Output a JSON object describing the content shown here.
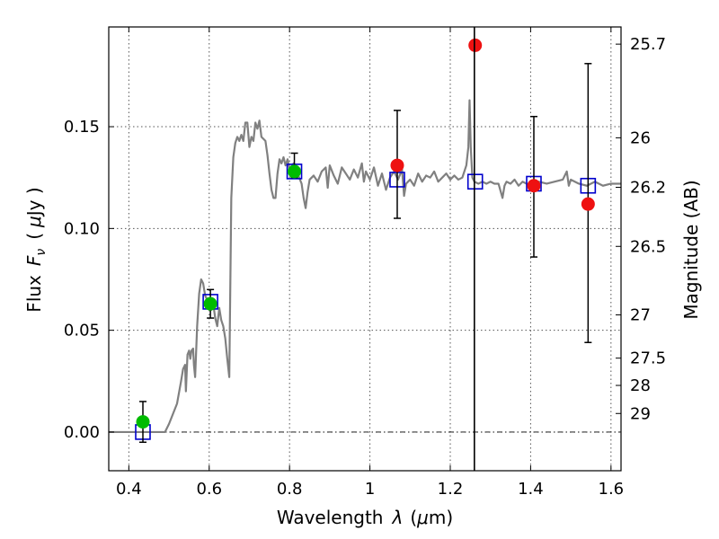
{
  "chart_data": {
    "type": "scatter",
    "xlabel_text": "Wavelength",
    "xlabel_sym": "λ",
    "xlabel_unit_open": "(",
    "xlabel_unit_mu": "μ",
    "xlabel_unit_rest": "m)",
    "ylabel_text": "Flux",
    "ylabel_sym": "F",
    "ylabel_sub": "ν",
    "ylabel_unit_open": "(",
    "ylabel_unit_mu": "μ",
    "ylabel_unit_rest": "Jy )",
    "y2label": "Magnitude (AB)",
    "xlim": [
      0.35,
      1.625
    ],
    "ylim": [
      -0.019,
      0.199
    ],
    "x_ticks": [
      {
        "value": 0.4,
        "label": "0.4"
      },
      {
        "value": 0.6,
        "label": "0.6"
      },
      {
        "value": 0.8,
        "label": "0.8"
      },
      {
        "value": 1.0,
        "label": "1"
      },
      {
        "value": 1.2,
        "label": "1.2"
      },
      {
        "value": 1.4,
        "label": "1.4"
      },
      {
        "value": 1.6,
        "label": "1.6"
      }
    ],
    "y_ticks": [
      {
        "value": 0.0,
        "label": "0.00"
      },
      {
        "value": 0.05,
        "label": "0.05"
      },
      {
        "value": 0.1,
        "label": "0.10"
      },
      {
        "value": 0.15,
        "label": "0.15"
      }
    ],
    "y2_ticks": [
      {
        "mag": 25.7,
        "label": "25.7"
      },
      {
        "mag": 26.0,
        "label": "26"
      },
      {
        "mag": 26.2,
        "label": "26.2"
      },
      {
        "mag": 26.5,
        "label": "26.5"
      },
      {
        "mag": 27.0,
        "label": "27"
      },
      {
        "mag": 27.5,
        "label": "27.5"
      },
      {
        "mag": 28.0,
        "label": "28"
      },
      {
        "mag": 29.0,
        "label": "29"
      }
    ],
    "grid": true,
    "zero_line_y": 0.0,
    "vertical_line_x": 1.26,
    "series": [
      {
        "kind": "line",
        "color": "#808080",
        "points": [
          [
            0.35,
            0.0
          ],
          [
            0.49,
            0.0
          ],
          [
            0.5,
            0.004
          ],
          [
            0.52,
            0.014
          ],
          [
            0.53,
            0.025
          ],
          [
            0.535,
            0.031
          ],
          [
            0.54,
            0.033
          ],
          [
            0.542,
            0.02
          ],
          [
            0.546,
            0.038
          ],
          [
            0.55,
            0.04
          ],
          [
            0.553,
            0.036
          ],
          [
            0.556,
            0.04
          ],
          [
            0.56,
            0.041
          ],
          [
            0.562,
            0.033
          ],
          [
            0.565,
            0.027
          ],
          [
            0.57,
            0.052
          ],
          [
            0.575,
            0.068
          ],
          [
            0.58,
            0.075
          ],
          [
            0.585,
            0.073
          ],
          [
            0.59,
            0.067
          ],
          [
            0.595,
            0.065
          ],
          [
            0.6,
            0.062
          ],
          [
            0.605,
            0.06
          ],
          [
            0.61,
            0.063
          ],
          [
            0.615,
            0.056
          ],
          [
            0.62,
            0.052
          ],
          [
            0.625,
            0.061
          ],
          [
            0.63,
            0.055
          ],
          [
            0.635,
            0.052
          ],
          [
            0.64,
            0.046
          ],
          [
            0.645,
            0.036
          ],
          [
            0.65,
            0.027
          ],
          [
            0.655,
            0.115
          ],
          [
            0.66,
            0.135
          ],
          [
            0.665,
            0.142
          ],
          [
            0.67,
            0.145
          ],
          [
            0.675,
            0.143
          ],
          [
            0.68,
            0.146
          ],
          [
            0.685,
            0.143
          ],
          [
            0.69,
            0.152
          ],
          [
            0.695,
            0.152
          ],
          [
            0.7,
            0.14
          ],
          [
            0.705,
            0.145
          ],
          [
            0.71,
            0.143
          ],
          [
            0.715,
            0.152
          ],
          [
            0.72,
            0.149
          ],
          [
            0.725,
            0.153
          ],
          [
            0.73,
            0.145
          ],
          [
            0.735,
            0.144
          ],
          [
            0.74,
            0.143
          ],
          [
            0.745,
            0.136
          ],
          [
            0.75,
            0.127
          ],
          [
            0.755,
            0.119
          ],
          [
            0.76,
            0.115
          ],
          [
            0.765,
            0.115
          ],
          [
            0.77,
            0.127
          ],
          [
            0.775,
            0.134
          ],
          [
            0.78,
            0.132
          ],
          [
            0.785,
            0.135
          ],
          [
            0.79,
            0.131
          ],
          [
            0.795,
            0.134
          ],
          [
            0.8,
            0.129
          ],
          [
            0.81,
            0.132
          ],
          [
            0.82,
            0.127
          ],
          [
            0.83,
            0.122
          ],
          [
            0.835,
            0.115
          ],
          [
            0.84,
            0.11
          ],
          [
            0.845,
            0.118
          ],
          [
            0.85,
            0.124
          ],
          [
            0.86,
            0.126
          ],
          [
            0.87,
            0.123
          ],
          [
            0.88,
            0.128
          ],
          [
            0.89,
            0.13
          ],
          [
            0.895,
            0.12
          ],
          [
            0.9,
            0.131
          ],
          [
            0.91,
            0.126
          ],
          [
            0.92,
            0.122
          ],
          [
            0.93,
            0.13
          ],
          [
            0.94,
            0.127
          ],
          [
            0.95,
            0.124
          ],
          [
            0.96,
            0.129
          ],
          [
            0.97,
            0.125
          ],
          [
            0.98,
            0.132
          ],
          [
            0.985,
            0.123
          ],
          [
            0.99,
            0.128
          ],
          [
            1.0,
            0.124
          ],
          [
            1.01,
            0.13
          ],
          [
            1.02,
            0.121
          ],
          [
            1.03,
            0.127
          ],
          [
            1.04,
            0.119
          ],
          [
            1.05,
            0.125
          ],
          [
            1.06,
            0.128
          ],
          [
            1.07,
            0.124
          ],
          [
            1.08,
            0.129
          ],
          [
            1.085,
            0.116
          ],
          [
            1.09,
            0.122
          ],
          [
            1.1,
            0.124
          ],
          [
            1.11,
            0.121
          ],
          [
            1.12,
            0.127
          ],
          [
            1.13,
            0.123
          ],
          [
            1.14,
            0.126
          ],
          [
            1.15,
            0.125
          ],
          [
            1.16,
            0.128
          ],
          [
            1.17,
            0.123
          ],
          [
            1.18,
            0.125
          ],
          [
            1.19,
            0.127
          ],
          [
            1.2,
            0.124
          ],
          [
            1.21,
            0.126
          ],
          [
            1.22,
            0.124
          ],
          [
            1.23,
            0.125
          ],
          [
            1.24,
            0.131
          ],
          [
            1.245,
            0.14
          ],
          [
            1.248,
            0.163
          ],
          [
            1.251,
            0.14
          ],
          [
            1.255,
            0.125
          ],
          [
            1.26,
            0.123
          ],
          [
            1.27,
            0.122
          ],
          [
            1.28,
            0.123
          ],
          [
            1.29,
            0.122
          ],
          [
            1.3,
            0.123
          ],
          [
            1.31,
            0.122
          ],
          [
            1.32,
            0.122
          ],
          [
            1.33,
            0.115
          ],
          [
            1.335,
            0.121
          ],
          [
            1.34,
            0.123
          ],
          [
            1.35,
            0.122
          ],
          [
            1.36,
            0.124
          ],
          [
            1.37,
            0.121
          ],
          [
            1.38,
            0.123
          ],
          [
            1.39,
            0.122
          ],
          [
            1.4,
            0.121
          ],
          [
            1.42,
            0.123
          ],
          [
            1.44,
            0.122
          ],
          [
            1.46,
            0.123
          ],
          [
            1.48,
            0.124
          ],
          [
            1.49,
            0.128
          ],
          [
            1.495,
            0.121
          ],
          [
            1.5,
            0.124
          ],
          [
            1.51,
            0.123
          ],
          [
            1.52,
            0.122
          ],
          [
            1.54,
            0.121
          ],
          [
            1.56,
            0.123
          ],
          [
            1.58,
            0.121
          ],
          [
            1.6,
            0.122
          ],
          [
            1.625,
            0.122
          ]
        ]
      },
      {
        "kind": "open-square",
        "color": "#0000cc",
        "points": [
          [
            0.435,
            0.0
          ],
          [
            0.603,
            0.064
          ],
          [
            0.812,
            0.128
          ],
          [
            1.068,
            0.124
          ],
          [
            1.262,
            0.123
          ],
          [
            1.408,
            0.122
          ],
          [
            1.543,
            0.121
          ]
        ]
      },
      {
        "kind": "error-bars",
        "color": "#000000",
        "bars": [
          {
            "x": 0.435,
            "low": -0.005,
            "high": 0.015
          },
          {
            "x": 0.603,
            "low": 0.056,
            "high": 0.07
          },
          {
            "x": 0.812,
            "low": 0.125,
            "high": 0.137
          },
          {
            "x": 1.068,
            "low": 0.105,
            "high": 0.158
          },
          {
            "x": 1.408,
            "low": 0.086,
            "high": 0.155
          },
          {
            "x": 1.543,
            "low": 0.044,
            "high": 0.181
          }
        ]
      },
      {
        "kind": "dot",
        "color": "#00bb00",
        "points": [
          [
            0.435,
            0.005
          ],
          [
            0.603,
            0.063
          ],
          [
            0.812,
            0.128
          ]
        ]
      },
      {
        "kind": "dot",
        "color": "#ee1111",
        "points": [
          [
            1.068,
            0.131
          ],
          [
            1.262,
            0.19
          ],
          [
            1.408,
            0.121
          ],
          [
            1.543,
            0.112
          ]
        ]
      }
    ]
  }
}
